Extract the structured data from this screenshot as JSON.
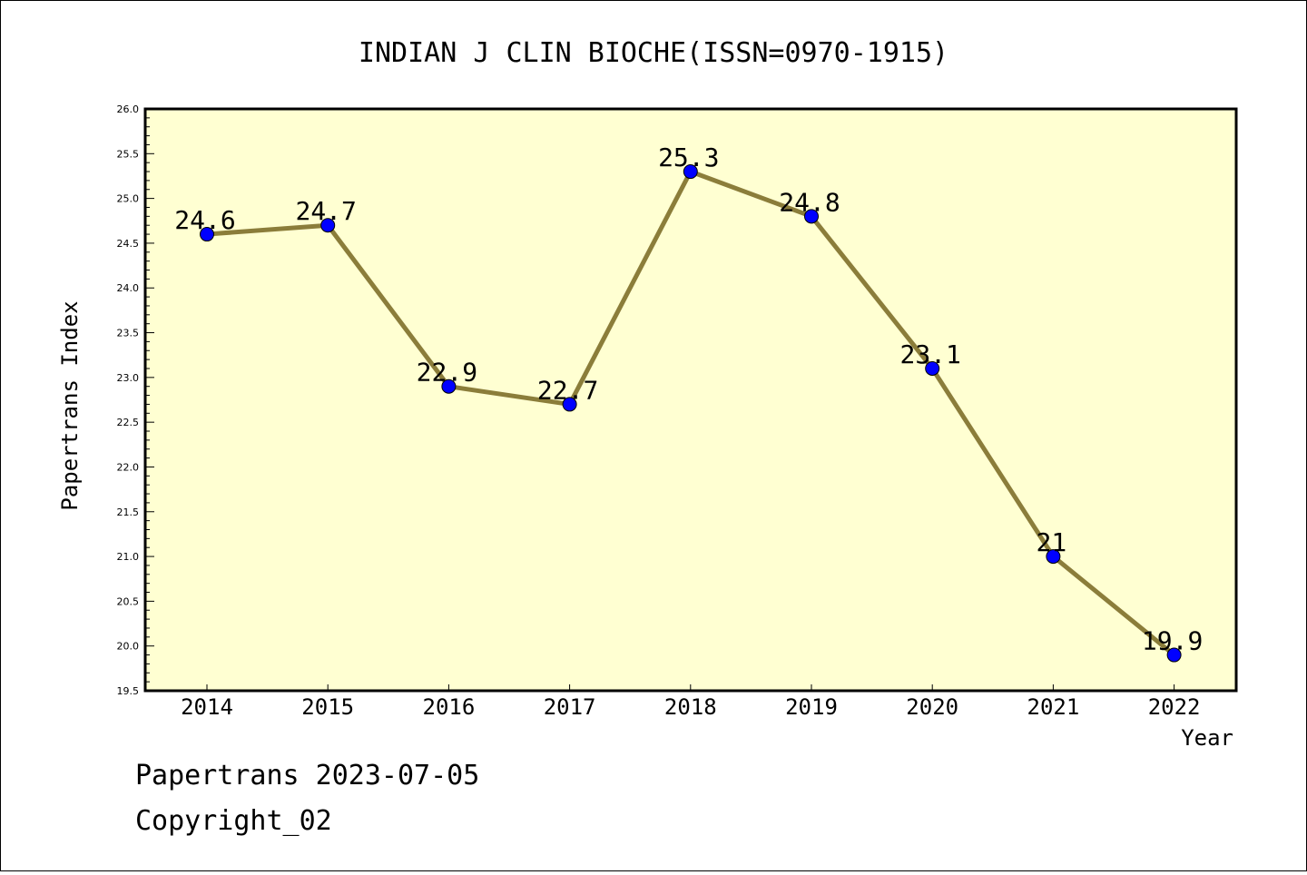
{
  "chart_data": {
    "type": "line",
    "title": "INDIAN J CLIN BIOCHE(ISSN=0970-1915)",
    "xlabel": "Year",
    "ylabel": "Papertrans Index",
    "categories": [
      "2014",
      "2015",
      "2016",
      "2017",
      "2018",
      "2019",
      "2020",
      "2021",
      "2022"
    ],
    "values": [
      24.6,
      24.7,
      22.9,
      22.7,
      25.3,
      24.8,
      23.1,
      21,
      19.9
    ],
    "data_labels": [
      "24.6",
      "24.7",
      "22.9",
      "22.7",
      "25.3",
      "24.8",
      "23.1",
      "21",
      "19.9"
    ],
    "ylim": [
      19.5,
      26.0
    ],
    "yticks": [
      "19.5",
      "20.0",
      "20.5",
      "21.0",
      "21.5",
      "22.0",
      "22.5",
      "23.0",
      "23.5",
      "24.0",
      "24.5",
      "25.0",
      "25.5",
      "26.0"
    ],
    "grid": false,
    "colors": {
      "plot_bg": "#ffffd2",
      "line": "#8b7d3a",
      "marker": "#0000ff"
    }
  },
  "footer": {
    "line1": "Papertrans 2023-07-05",
    "line2": "Copyright_02"
  }
}
